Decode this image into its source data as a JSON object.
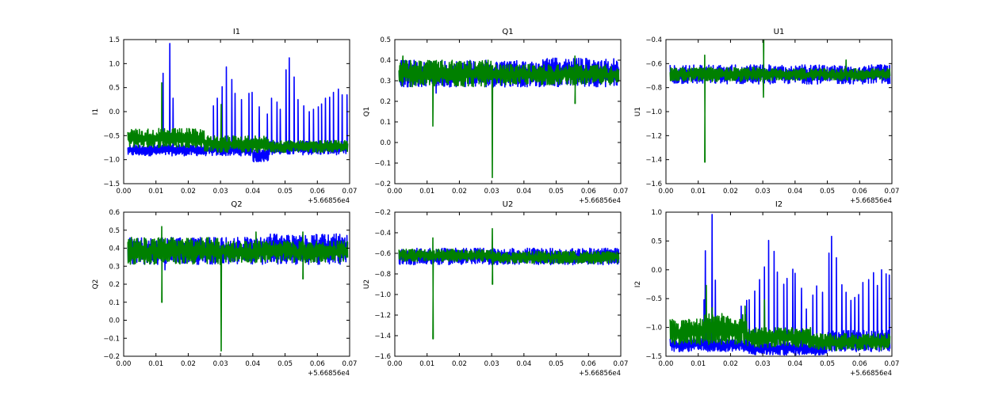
{
  "chart_data": [
    {
      "type": "line",
      "title": "I1",
      "ylabel": "I1",
      "xlabel": "",
      "x_offset_label": "+5.66856e4",
      "xlim": [
        0,
        0.07
      ],
      "ylim": [
        -1.5,
        1.5
      ],
      "yticks": [
        -1.5,
        -1.0,
        -0.5,
        0.0,
        0.5,
        1.0,
        1.5
      ],
      "yfmt": 1,
      "series": [
        {
          "name": "blue",
          "color": "#0000ff",
          "segments": [
            [
              0.0013,
              0.04,
              -0.92,
              -0.68
            ],
            [
              0.04,
              0.045,
              -1.05,
              -0.8
            ],
            [
              0.045,
              0.0695,
              -0.9,
              -0.62
            ]
          ],
          "spikes": [
            [
              0.0122,
              0.8
            ],
            [
              0.0143,
              1.42
            ],
            [
              0.0153,
              0.28
            ],
            [
              0.0278,
              0.12
            ],
            [
              0.029,
              0.28
            ],
            [
              0.0305,
              0.52
            ],
            [
              0.0318,
              0.93
            ],
            [
              0.0335,
              0.67
            ],
            [
              0.0345,
              0.38
            ],
            [
              0.0365,
              0.25
            ],
            [
              0.0388,
              0.38
            ],
            [
              0.0398,
              0.4
            ],
            [
              0.042,
              0.1
            ],
            [
              0.0445,
              -0.05
            ],
            [
              0.0458,
              0.28
            ],
            [
              0.0475,
              0.2
            ],
            [
              0.0485,
              0.05
            ],
            [
              0.0503,
              0.87
            ],
            [
              0.0513,
              1.12
            ],
            [
              0.0528,
              0.72
            ],
            [
              0.054,
              0.25
            ],
            [
              0.0558,
              0.12
            ],
            [
              0.0575,
              0.0
            ],
            [
              0.0588,
              0.05
            ],
            [
              0.0603,
              0.1
            ],
            [
              0.0613,
              0.16
            ],
            [
              0.0625,
              0.28
            ],
            [
              0.0638,
              0.3
            ],
            [
              0.065,
              0.4
            ],
            [
              0.0665,
              0.47
            ],
            [
              0.0677,
              0.35
            ],
            [
              0.0692,
              0.35
            ]
          ]
        },
        {
          "name": "green",
          "color": "#008000",
          "segments": [
            [
              0.0013,
              0.025,
              -0.75,
              -0.35
            ],
            [
              0.025,
              0.045,
              -0.85,
              -0.5
            ],
            [
              0.045,
              0.0695,
              -0.85,
              -0.6
            ]
          ],
          "spikes": [
            [
              0.0118,
              0.6
            ],
            [
              0.0302,
              0.15
            ]
          ]
        }
      ]
    },
    {
      "type": "line",
      "title": "Q1",
      "ylabel": "Q1",
      "xlabel": "",
      "x_offset_label": "+5.66856e4",
      "xlim": [
        0,
        0.07
      ],
      "ylim": [
        -0.2,
        0.5
      ],
      "yticks": [
        -0.2,
        -0.1,
        0.0,
        0.1,
        0.2,
        0.3,
        0.4,
        0.5
      ],
      "yfmt": 1,
      "series": [
        {
          "name": "blue",
          "color": "#0000ff",
          "segments": [
            [
              0.0013,
              0.045,
              0.27,
              0.4
            ],
            [
              0.045,
              0.0695,
              0.27,
              0.41
            ]
          ],
          "spikes": [
            [
              0.0128,
              0.24
            ]
          ]
        },
        {
          "name": "green",
          "color": "#008000",
          "segments": [
            [
              0.0013,
              0.03,
              0.27,
              0.4
            ],
            [
              0.03,
              0.0695,
              0.28,
              0.38
            ]
          ],
          "spikes": [
            [
              0.0118,
              0.08
            ],
            [
              0.0302,
              -0.17
            ],
            [
              0.0558,
              0.19
            ],
            [
              0.0558,
              0.42
            ],
            [
              0.0025,
              0.42
            ]
          ]
        }
      ]
    },
    {
      "type": "line",
      "title": "U1",
      "ylabel": "U1",
      "xlabel": "",
      "x_offset_label": "+5.66856e4",
      "xlim": [
        0,
        0.07
      ],
      "ylim": [
        -1.6,
        -0.4
      ],
      "yticks": [
        -1.6,
        -1.4,
        -1.2,
        -1.0,
        -0.8,
        -0.6,
        -0.4
      ],
      "yfmt": 1,
      "series": [
        {
          "name": "blue",
          "color": "#0000ff",
          "segments": [
            [
              0.0013,
              0.0695,
              -0.77,
              -0.61
            ]
          ],
          "spikes": []
        },
        {
          "name": "green",
          "color": "#008000",
          "segments": [
            [
              0.0013,
              0.03,
              -0.75,
              -0.63
            ],
            [
              0.03,
              0.0695,
              -0.74,
              -0.64
            ]
          ],
          "spikes": [
            [
              0.012,
              -1.42
            ],
            [
              0.012,
              -0.53
            ],
            [
              0.0302,
              -0.4
            ],
            [
              0.0302,
              -0.88
            ],
            [
              0.0558,
              -0.57
            ]
          ]
        }
      ]
    },
    {
      "type": "line",
      "title": "Q2",
      "ylabel": "Q2",
      "xlabel": "",
      "x_offset_label": "+5.66856e4",
      "xlim": [
        0,
        0.07
      ],
      "ylim": [
        -0.2,
        0.6
      ],
      "yticks": [
        -0.2,
        -0.1,
        0.0,
        0.1,
        0.2,
        0.3,
        0.4,
        0.5,
        0.6
      ],
      "yfmt": 1,
      "series": [
        {
          "name": "blue",
          "color": "#0000ff",
          "segments": [
            [
              0.0013,
              0.045,
              0.31,
              0.46
            ],
            [
              0.045,
              0.0695,
              0.31,
              0.48
            ]
          ],
          "spikes": [
            [
              0.0128,
              0.28
            ]
          ]
        },
        {
          "name": "green",
          "color": "#008000",
          "segments": [
            [
              0.0013,
              0.03,
              0.31,
              0.46
            ],
            [
              0.03,
              0.0695,
              0.32,
              0.44
            ]
          ],
          "spikes": [
            [
              0.0118,
              0.1
            ],
            [
              0.0118,
              0.52
            ],
            [
              0.0302,
              -0.17
            ],
            [
              0.0555,
              0.23
            ],
            [
              0.0555,
              0.49
            ],
            [
              0.041,
              0.49
            ]
          ]
        }
      ]
    },
    {
      "type": "line",
      "title": "U2",
      "ylabel": "U2",
      "xlabel": "",
      "x_offset_label": "+5.66856e4",
      "xlim": [
        0,
        0.07
      ],
      "ylim": [
        -1.6,
        -0.2
      ],
      "yticks": [
        -1.6,
        -1.4,
        -1.2,
        -1.0,
        -0.8,
        -0.6,
        -0.4,
        -0.2
      ],
      "yfmt": 1,
      "series": [
        {
          "name": "blue",
          "color": "#0000ff",
          "segments": [
            [
              0.0013,
              0.0695,
              -0.71,
              -0.55
            ]
          ],
          "spikes": []
        },
        {
          "name": "green",
          "color": "#008000",
          "segments": [
            [
              0.0013,
              0.03,
              -0.68,
              -0.56
            ],
            [
              0.03,
              0.0695,
              -0.7,
              -0.58
            ]
          ],
          "spikes": [
            [
              0.0118,
              -1.43
            ],
            [
              0.0118,
              -0.45
            ],
            [
              0.0302,
              -0.9
            ],
            [
              0.0302,
              -0.36
            ]
          ]
        }
      ]
    },
    {
      "type": "line",
      "title": "I2",
      "ylabel": "I2",
      "xlabel": "",
      "x_offset_label": "+5.66856e4",
      "xlim": [
        0,
        0.07
      ],
      "ylim": [
        -1.5,
        1.0
      ],
      "yticks": [
        -1.5,
        -1.0,
        -0.5,
        0.0,
        0.5,
        1.0
      ],
      "yfmt": 1,
      "series": [
        {
          "name": "blue",
          "color": "#0000ff",
          "segments": [
            [
              0.0013,
              0.025,
              -1.42,
              -1.18
            ],
            [
              0.025,
              0.05,
              -1.48,
              -1.25
            ],
            [
              0.05,
              0.0695,
              -1.42,
              -1.05
            ]
          ],
          "spikes": [
            [
              0.0118,
              -0.52
            ],
            [
              0.0122,
              0.33
            ],
            [
              0.0143,
              0.96
            ],
            [
              0.0153,
              -0.18
            ],
            [
              0.0233,
              -0.63
            ],
            [
              0.025,
              -0.53
            ],
            [
              0.0258,
              -0.52
            ],
            [
              0.0275,
              -0.37
            ],
            [
              0.029,
              -0.17
            ],
            [
              0.0305,
              0.05
            ],
            [
              0.0318,
              0.51
            ],
            [
              0.0335,
              0.32
            ],
            [
              0.0345,
              -0.04
            ],
            [
              0.0365,
              -0.25
            ],
            [
              0.0375,
              -0.15
            ],
            [
              0.0393,
              0.01
            ],
            [
              0.04,
              -0.06
            ],
            [
              0.042,
              -0.32
            ],
            [
              0.0435,
              -0.68
            ],
            [
              0.0455,
              -0.44
            ],
            [
              0.0467,
              -0.28
            ],
            [
              0.0485,
              -0.39
            ],
            [
              0.0505,
              0.29
            ],
            [
              0.0513,
              0.58
            ],
            [
              0.0528,
              0.21
            ],
            [
              0.0545,
              -0.26
            ],
            [
              0.0558,
              -0.39
            ],
            [
              0.0573,
              -0.53
            ],
            [
              0.0585,
              -0.48
            ],
            [
              0.0597,
              -0.43
            ],
            [
              0.061,
              -0.22
            ],
            [
              0.0628,
              -0.17
            ],
            [
              0.0643,
              -0.05
            ],
            [
              0.0655,
              -0.27
            ],
            [
              0.0668,
              0.0
            ],
            [
              0.0682,
              -0.07
            ],
            [
              0.0692,
              -0.09
            ]
          ]
        },
        {
          "name": "green",
          "color": "#008000",
          "segments": [
            [
              0.0013,
              0.012,
              -1.3,
              -0.85
            ],
            [
              0.012,
              0.025,
              -1.3,
              -0.75
            ],
            [
              0.025,
              0.045,
              -1.35,
              -1.0
            ],
            [
              0.045,
              0.0695,
              -1.4,
              -1.1
            ]
          ],
          "spikes": [
            [
              0.0125,
              -0.27
            ],
            [
              0.0143,
              -0.66
            ],
            [
              0.0245,
              -0.63
            ],
            [
              0.0305,
              -0.52
            ]
          ]
        }
      ]
    }
  ]
}
